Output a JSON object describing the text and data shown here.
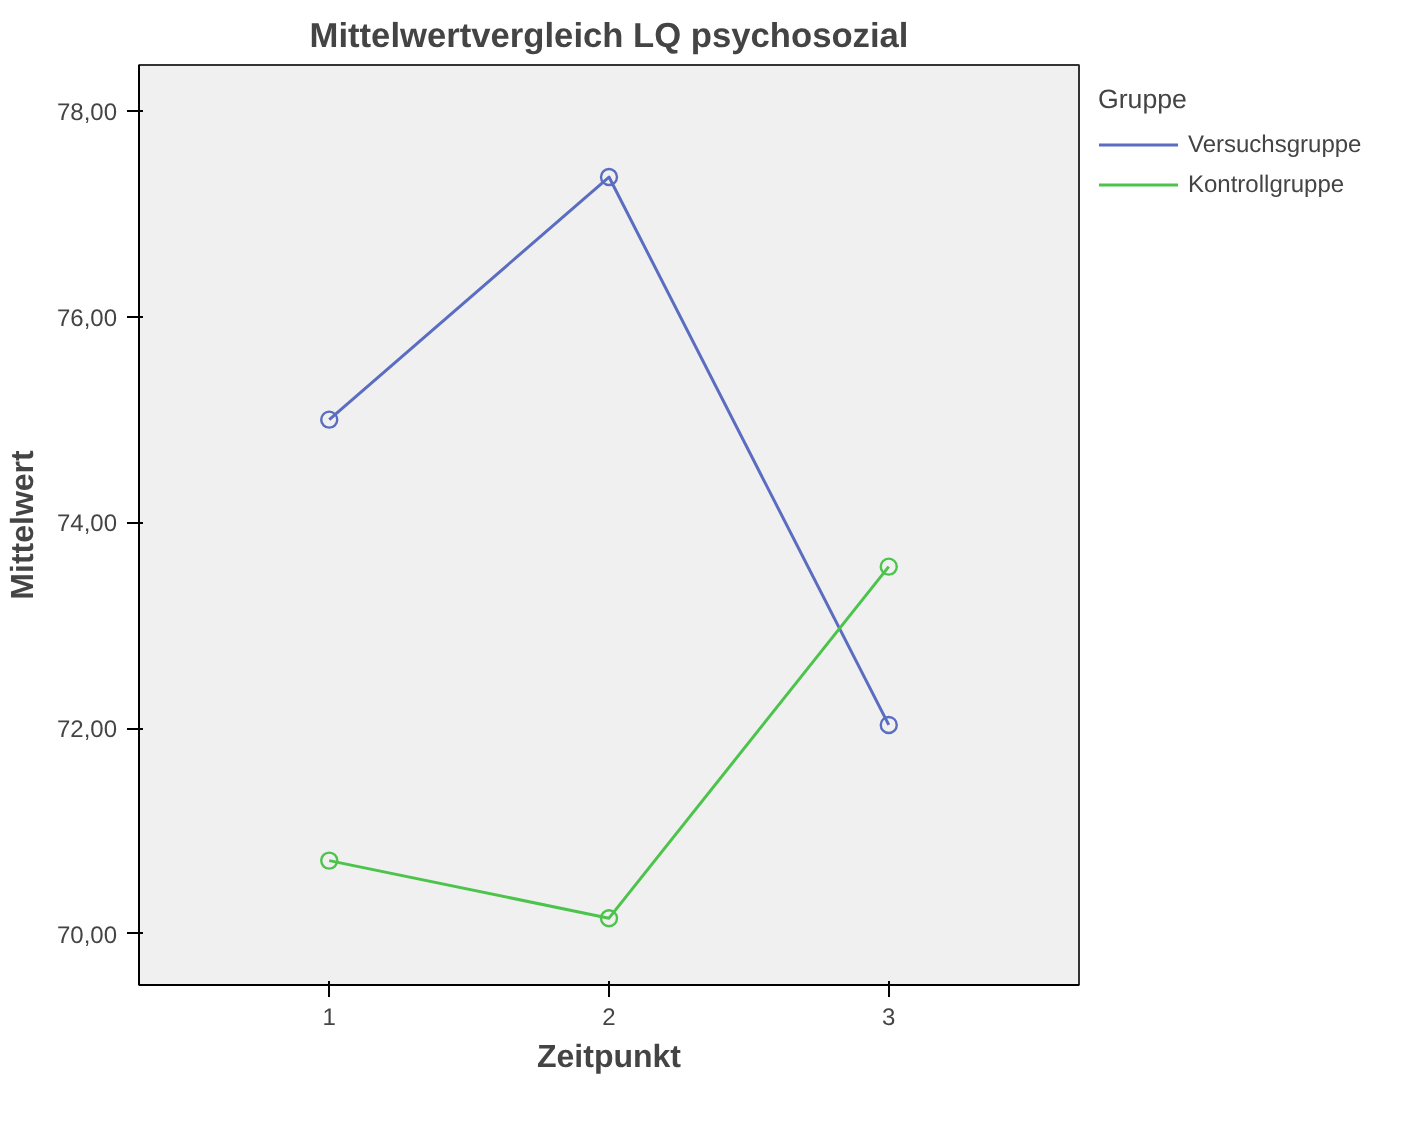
{
  "chart_data": {
    "type": "line",
    "title": "Mittelwertvergleich LQ psychosozial",
    "xlabel": "Zeitpunkt",
    "ylabel": "Mittelwert",
    "legend_title": "Gruppe",
    "x": [
      1,
      2,
      3
    ],
    "series": [
      {
        "name": "Versuchsgruppe",
        "color": "#5a6dc0",
        "values": [
          75.0,
          77.36,
          72.03
        ]
      },
      {
        "name": "Kontrollgruppe",
        "color": "#4cc44c",
        "values": [
          70.71,
          70.15,
          73.57
        ]
      }
    ],
    "xlim": [
      0.32,
      3.68
    ],
    "xticks": [
      1,
      2,
      3
    ],
    "ylim": [
      69.5,
      78.45
    ],
    "yticks": [
      {
        "value": 70,
        "label": "70,00"
      },
      {
        "value": 72,
        "label": "72,00"
      },
      {
        "value": 74,
        "label": "74,00"
      },
      {
        "value": 76,
        "label": "76,00"
      },
      {
        "value": 78,
        "label": "78,00"
      }
    ],
    "marker": "circle",
    "line_style": "solid",
    "grid": false,
    "legend": "right"
  }
}
